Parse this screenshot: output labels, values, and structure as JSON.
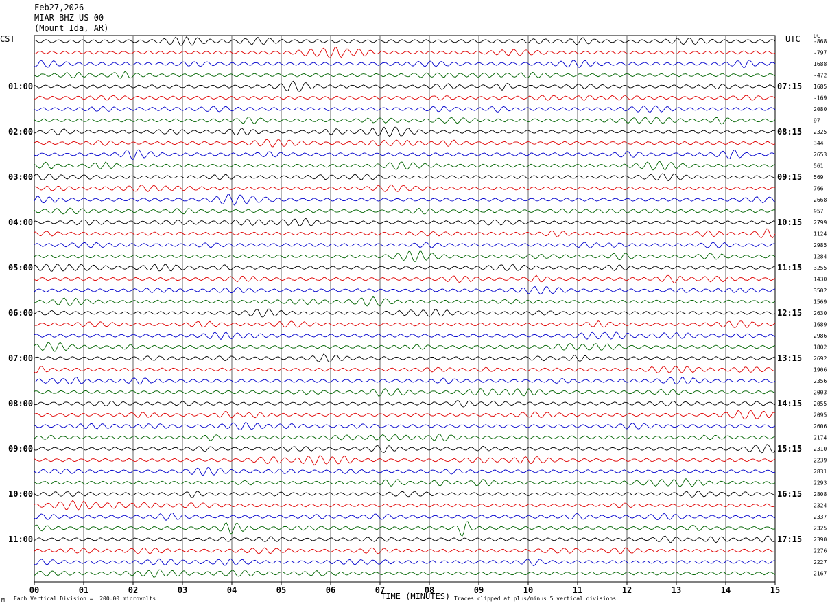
{
  "header": {
    "date": "Feb27,2026",
    "station": "MIAR BHZ US 00",
    "location": "(Mount Ida, AR)"
  },
  "left_tz": "CST",
  "right_tz": "UTC",
  "dc_label": "DC",
  "footer": {
    "scale_note": "Each Vertical Division =  200.00 microvolts",
    "xlabel": "TIME (MINUTES)",
    "clip_note": "Traces clipped at plus/minus 5 vertical divisions",
    "corner_mark": "M"
  },
  "chart_data": {
    "type": "line",
    "title": "",
    "xlabel": "TIME (MINUTES)",
    "x_ticks": [
      "00",
      "01",
      "02",
      "03",
      "04",
      "05",
      "06",
      "07",
      "08",
      "09",
      "10",
      "11",
      "12",
      "13",
      "14",
      "15"
    ],
    "xlim": [
      0,
      15
    ],
    "trace_colors": [
      "#000000",
      "#e00000",
      "#0000cc",
      "#006400"
    ],
    "rows_per_hour": 4,
    "minutes_per_row": 15,
    "left_hour_labels": [
      "01:00",
      "02:00",
      "03:00",
      "04:00",
      "05:00",
      "06:00",
      "07:00",
      "08:00",
      "09:00",
      "10:00",
      "11:00"
    ],
    "right_hour_labels": [
      "07:15",
      "08:15",
      "09:15",
      "10:15",
      "11:15",
      "12:15",
      "13:15",
      "14:15",
      "15:15",
      "16:15",
      "17:15"
    ],
    "dc_offsets": [
      "-868",
      "-797",
      "1688",
      "-472",
      "1685",
      "-169",
      "2080",
      "97",
      "2325",
      "344",
      "2653",
      "561",
      "569",
      "766",
      "2668",
      "957",
      "2799",
      "1124",
      "2985",
      "1284",
      "3255",
      "1430",
      "3502",
      "1569",
      "2630",
      "1689",
      "2986",
      "1802",
      "2692",
      "1906",
      "2356",
      "2003",
      "2055",
      "2095",
      "2606",
      "2174",
      "2310",
      "2239",
      "2831",
      "2293",
      "2808",
      "2324",
      "2337",
      "2325",
      "2390",
      "2276",
      "2227",
      "2167"
    ],
    "events": [
      {
        "row": 43,
        "minute": 8.7,
        "description": "large burst on green trace"
      }
    ]
  }
}
